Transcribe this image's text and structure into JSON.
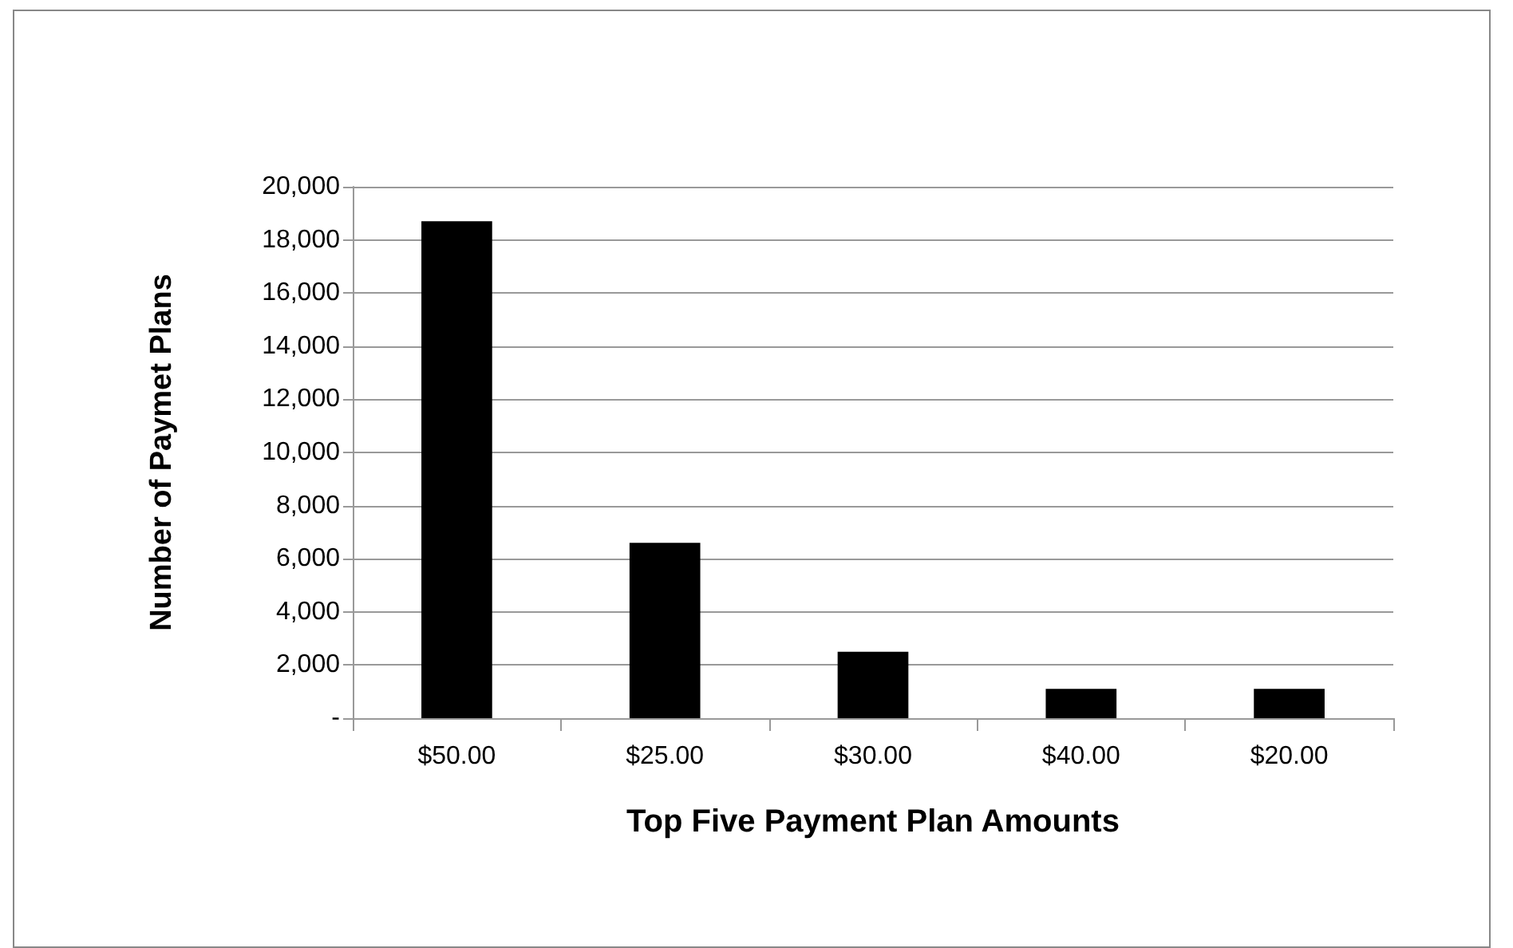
{
  "chart_data": {
    "type": "bar",
    "xlabel": "Top Five Payment Plan Amounts",
    "ylabel": "Number of Paymet Plans",
    "categories": [
      "$50.00",
      "$25.00",
      "$30.00",
      "$40.00",
      "$20.00"
    ],
    "values": [
      18700,
      6600,
      2500,
      1100,
      1100
    ],
    "color": "#000000",
    "ylim": [
      0,
      20000
    ],
    "yticks": [
      {
        "value": 0,
        "label": "-"
      },
      {
        "value": 2000,
        "label": "2,000"
      },
      {
        "value": 4000,
        "label": "4,000"
      },
      {
        "value": 6000,
        "label": "6,000"
      },
      {
        "value": 8000,
        "label": "8,000"
      },
      {
        "value": 10000,
        "label": "10,000"
      },
      {
        "value": 12000,
        "label": "12,000"
      },
      {
        "value": 14000,
        "label": "14,000"
      },
      {
        "value": 16000,
        "label": "16,000"
      },
      {
        "value": 18000,
        "label": "18,000"
      },
      {
        "value": 20000,
        "label": "20,000"
      }
    ],
    "grid": "y"
  }
}
